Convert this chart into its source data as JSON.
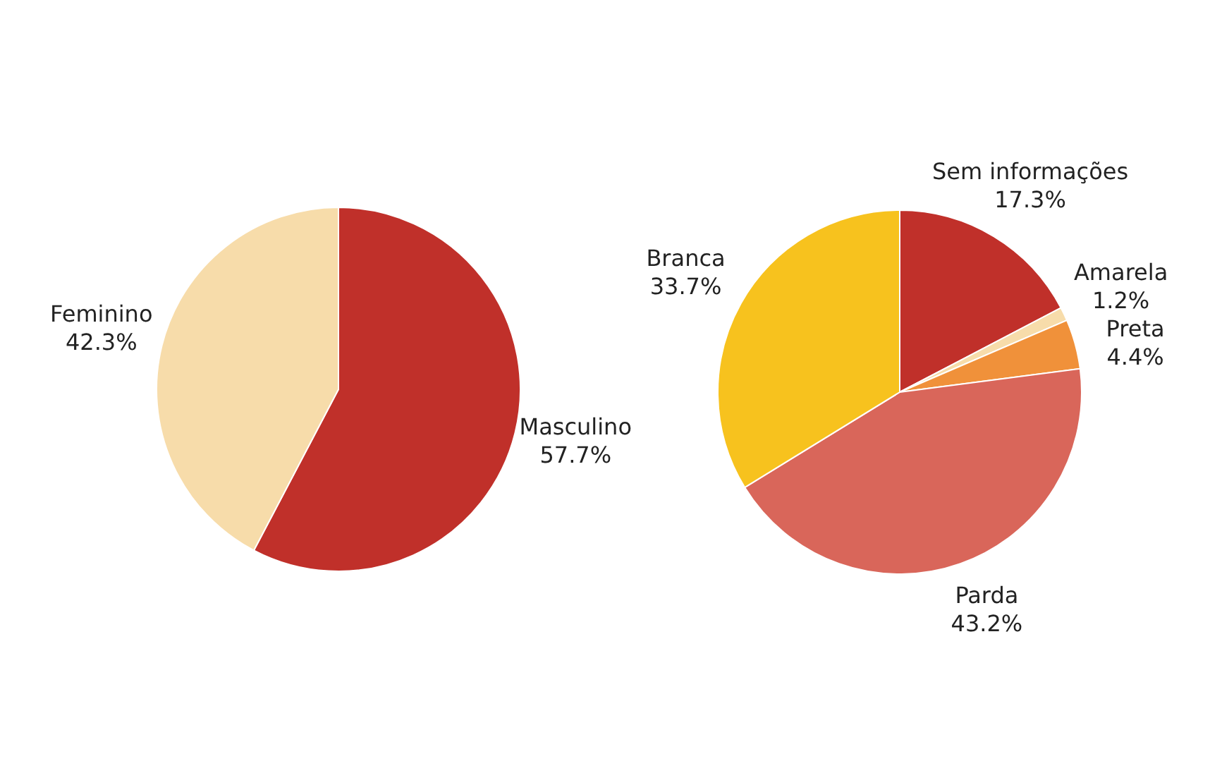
{
  "chart_data": [
    {
      "type": "pie",
      "categories": [
        "Masculino",
        "Feminino"
      ],
      "values": [
        57.7,
        42.3
      ],
      "value_labels": [
        "57.7%",
        "42.3%"
      ],
      "colors": [
        "#c0302a",
        "#f7dcaa"
      ]
    },
    {
      "type": "pie",
      "categories": [
        "Sem informações",
        "Amarela",
        "Preta",
        "Parda",
        "Branca"
      ],
      "values": [
        17.3,
        1.2,
        4.4,
        43.2,
        33.7
      ],
      "value_labels": [
        "17.3%",
        "1.2%",
        "4.4%",
        "43.2%",
        "33.7%"
      ],
      "colors": [
        "#c0302a",
        "#f7dcaa",
        "#f0913a",
        "#d9665a",
        "#f7c21e"
      ]
    }
  ]
}
